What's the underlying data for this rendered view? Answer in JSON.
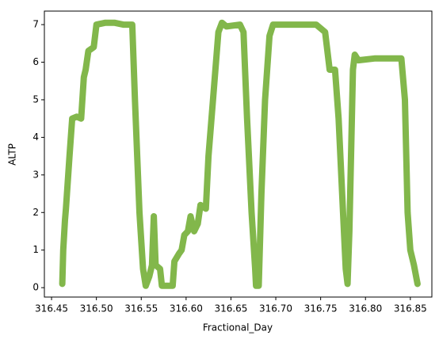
{
  "chart_data": {
    "type": "line",
    "x_label": "Fractional_Day",
    "y_label": "ALTP",
    "series": [
      {
        "name": "ALTP",
        "color": "#82b74b",
        "x": [
          316.462,
          316.463,
          316.465,
          316.466,
          316.47,
          316.473,
          316.478,
          316.483,
          316.486,
          316.488,
          316.491,
          316.497,
          316.5,
          316.51,
          316.52,
          316.53,
          316.54,
          316.543,
          316.548,
          316.552,
          316.555,
          316.559,
          316.562,
          316.564,
          316.566,
          316.571,
          316.573,
          316.585,
          316.587,
          316.592,
          316.595,
          316.598,
          316.602,
          316.605,
          316.609,
          316.613,
          316.616,
          316.622,
          316.625,
          316.63,
          316.636,
          316.64,
          316.645,
          316.66,
          316.664,
          316.668,
          316.673,
          316.677,
          316.678,
          316.681,
          316.684,
          316.688,
          316.693,
          316.697,
          316.72,
          316.745,
          316.755,
          316.76,
          316.766,
          316.77,
          316.775,
          316.778,
          316.78,
          316.782,
          316.786,
          316.788,
          316.792,
          316.81,
          316.835,
          316.84,
          316.844,
          316.847,
          316.85,
          316.854,
          316.858
        ],
        "values": [
          0.1,
          1.0,
          1.8,
          2.1,
          3.5,
          4.5,
          4.55,
          4.5,
          5.6,
          5.8,
          6.3,
          6.4,
          7.0,
          7.05,
          7.05,
          7.0,
          7.0,
          5.0,
          2.0,
          0.5,
          0.05,
          0.3,
          0.6,
          1.9,
          0.6,
          0.5,
          0.05,
          0.05,
          0.7,
          0.9,
          1.0,
          1.4,
          1.5,
          1.9,
          1.5,
          1.7,
          2.2,
          2.1,
          3.5,
          5.0,
          6.8,
          7.05,
          6.95,
          7.0,
          6.8,
          4.5,
          2.0,
          0.5,
          0.05,
          0.05,
          2.5,
          5.0,
          6.7,
          7.0,
          7.0,
          7.0,
          6.8,
          5.8,
          5.8,
          4.5,
          2.0,
          0.5,
          0.1,
          1.5,
          5.8,
          6.2,
          6.05,
          6.1,
          6.1,
          6.1,
          5.0,
          2.0,
          1.0,
          0.6,
          0.1
        ]
      }
    ],
    "xlim": [
      316.442,
      316.874
    ],
    "xticks": [
      316.45,
      {
        "value": 316.5,
        "label": "316.50"
      },
      316.55,
      {
        "value": 316.6,
        "label": "316.60"
      },
      316.65,
      {
        "value": 316.7,
        "label": "316.70"
      },
      316.75,
      {
        "value": 316.8,
        "label": "316.80"
      },
      316.85
    ],
    "ylim": [
      -0.25,
      7.36
    ],
    "yticks": [
      0,
      1,
      2,
      3,
      4,
      5,
      6,
      7
    ],
    "grid": false
  }
}
